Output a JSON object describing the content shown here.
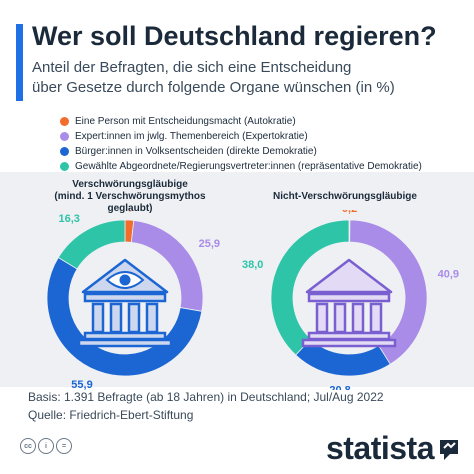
{
  "header": {
    "title": "Wer soll Deutschland regieren?",
    "subtitle_line1": "Anteil der Befragten, die sich eine Entscheidung",
    "subtitle_line2": "über Gesetze durch folgende Organe wünschen (in %)"
  },
  "colors": {
    "accent": "#1f6fe6",
    "autokratie": "#f26c2b",
    "expertokratie": "#a98be8",
    "direkte_demokratie": "#1c66d4",
    "repraesentative_demokratie": "#2ec4a8",
    "building_fill": "#cdd8ee",
    "building_fill_right": "#e3dbf6",
    "building_stroke": "#1c66d4",
    "building_stroke_right": "#7a5fd0"
  },
  "chart_data": [
    {
      "type": "pie",
      "title": "Verschwörungsgläubige (mind. 1 Verschwörungsmythos geglaubt)",
      "title_lines": [
        "Verschwörungsgläubige",
        "(mind. 1 Verschwörungsmythos",
        "geglaubt)"
      ],
      "legend": [
        "Eine Person mit Entscheidungsmacht (Autokratie)",
        "Expert:innen im jwlg. Themenbereich (Expertokratie)",
        "Bürger:innen in Volksentscheiden (direkte Demokratie)",
        "Gewählte Abgeordnete/Regierungsvertreter:innen (repräsentative Demokratie)"
      ],
      "slices": [
        {
          "label": "Eine Person mit Entscheidungsmacht (Autokratie)",
          "value": 1.8,
          "display": "1,8"
        },
        {
          "label": "Expert:innen im jwlg. Themenbereich (Expertokratie)",
          "value": 25.9,
          "display": "25,9"
        },
        {
          "label": "Bürger:innen in Volksentscheiden (direkte Demokratie)",
          "value": 55.9,
          "display": "55,9"
        },
        {
          "label": "Gewählte Abgeordnete/Regierungsvertreter:innen (repräsentative Demokratie)",
          "value": 16.3,
          "display": "16,3"
        }
      ]
    },
    {
      "type": "pie",
      "title": "Nicht-Verschwörungsgläubige",
      "title_lines": [
        "Nicht-Verschwörungsgläubige"
      ],
      "slices": [
        {
          "label": "Eine Person mit Entscheidungsmacht (Autokratie)",
          "value": 0.2,
          "display": "0,2"
        },
        {
          "label": "Expert:innen im jwlg. Themenbereich (Expertokratie)",
          "value": 40.9,
          "display": "40,9"
        },
        {
          "label": "Bürger:innen in Volksentscheiden (direkte Demokratie)",
          "value": 20.8,
          "display": "20,8"
        },
        {
          "label": "Gewählte Abgeordnete/Regierungsvertreter:innen (repräsentative Demokratie)",
          "value": 38.0,
          "display": "38,0"
        }
      ]
    }
  ],
  "footer": {
    "basis": "Basis: 1.391 Befragte (ab 18 Jahren) in Deutschland; Jul/Aug 2022",
    "source": "Quelle: Friedrich-Ebert-Stiftung"
  },
  "branding": {
    "logo_text": "statista",
    "cc_icons": [
      "cc",
      "i",
      "="
    ]
  }
}
